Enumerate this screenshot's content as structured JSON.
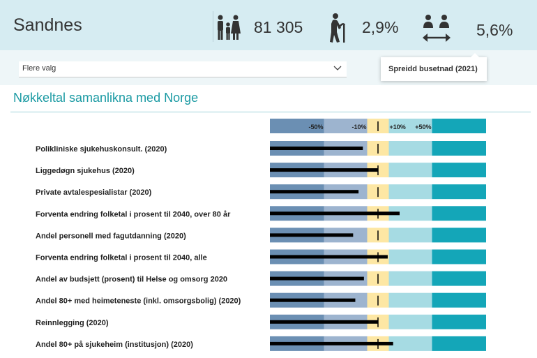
{
  "header": {
    "title": "Sandnes",
    "stats": [
      {
        "icon": "family-icon",
        "value": "81 305"
      },
      {
        "icon": "elderly-person-icon",
        "value": "2,9%"
      },
      {
        "icon": "population-spread-icon",
        "value": "5,6%"
      }
    ]
  },
  "filter": {
    "dropdown_label": "Flere valg"
  },
  "tooltip": {
    "text": "Spreidd busetnad (2021)"
  },
  "section": {
    "title": "Nøkkeltal samanlikna med Norge"
  },
  "colors": {
    "band_far_below": "#6b8fb3",
    "band_below": "#9db4cf",
    "band_near": "#fde7a4",
    "band_above": "#a6dbe3",
    "band_far_above": "#14a6b8",
    "measure": "#000000",
    "accent": "#1a9aa3"
  },
  "chart_data": {
    "type": "bar",
    "scale_labels": [
      "-50%",
      "-10%",
      "+10%",
      "+50%"
    ],
    "categories": [
      "Polikliniske sjukehuskonsult. (2020)",
      "Liggedøgn sjukehus (2020)",
      "Private avtalespesialistar (2020)",
      "Forventa endring folketal i prosent til 2040, over 80 år",
      "Andel personell med fagutdanning (2020)",
      "Forventa endring folketal i prosent til 2040, alle",
      "Andel av budsjett (prosent) til Helse og omsorg 2020",
      "Andel 80+ med heimeteneste (inkl. omsorgsbolig) (2020)",
      "Reinnlegging (2020)",
      "Andel 80+ på sjukeheim (institusjon) (2020)"
    ],
    "values": [
      86,
      100,
      82,
      120,
      77,
      109,
      87,
      79,
      100,
      114
    ],
    "reference": 100
  }
}
